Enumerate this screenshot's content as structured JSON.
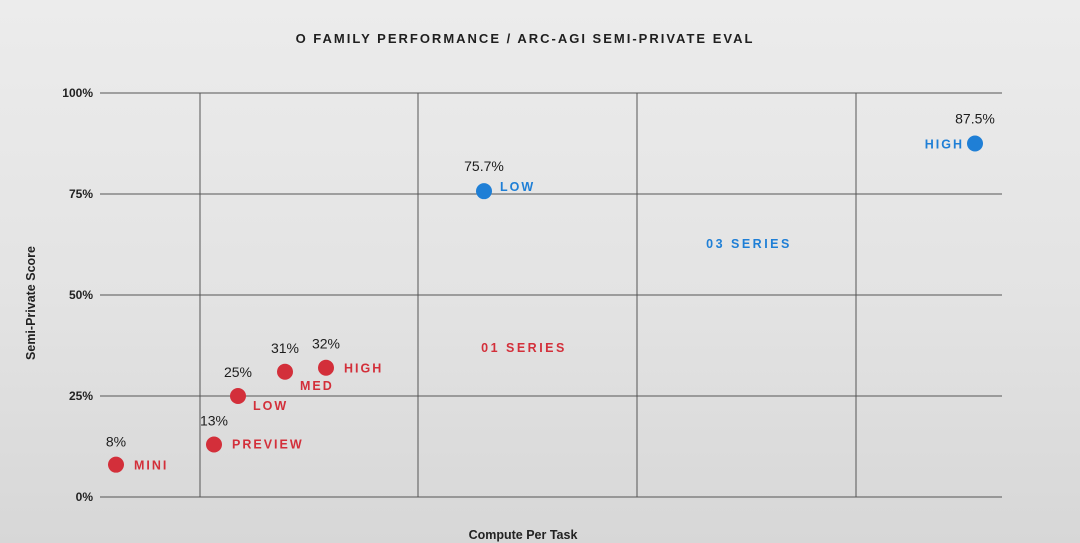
{
  "chart_data": {
    "type": "scatter",
    "title": "O FAMILY PERFORMANCE / ARC-AGI SEMI-PRIVATE EVAL",
    "xlabel": "Compute Per Task",
    "ylabel": "Semi-Private Score",
    "ylim": [
      0,
      100
    ],
    "yticks": [
      {
        "value": 0,
        "label": "0%"
      },
      {
        "value": 25,
        "label": "25%"
      },
      {
        "value": 50,
        "label": "50%"
      },
      {
        "value": 75,
        "label": "75%"
      },
      {
        "value": 100,
        "label": "100%"
      }
    ],
    "grid": true,
    "colors": {
      "o1": "#d32f3a",
      "o3": "#1f7fd6"
    },
    "series": [
      {
        "name": "01 SERIES",
        "key": "o1",
        "points": [
          {
            "label": "MINI",
            "value": 8,
            "value_label": "8%"
          },
          {
            "label": "PREVIEW",
            "value": 13,
            "value_label": "13%"
          },
          {
            "label": "LOW",
            "value": 25,
            "value_label": "25%"
          },
          {
            "label": "MED",
            "value": 31,
            "value_label": "31%"
          },
          {
            "label": "HIGH",
            "value": 32,
            "value_label": "32%"
          }
        ]
      },
      {
        "name": "03 SERIES",
        "key": "o3",
        "points": [
          {
            "label": "LOW",
            "value": 75.7,
            "value_label": "75.7%"
          },
          {
            "label": "HIGH",
            "value": 87.5,
            "value_label": "87.5%"
          }
        ]
      }
    ]
  }
}
